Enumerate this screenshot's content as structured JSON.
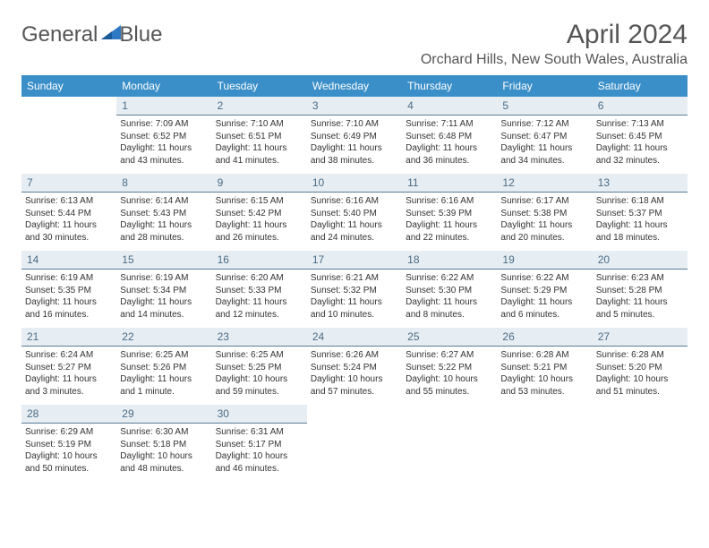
{
  "brand": {
    "word1": "General",
    "word2": "Blue"
  },
  "title": "April 2024",
  "location": "Orchard Hills, New South Wales, Australia",
  "colors": {
    "header_bg": "#3b8fc9",
    "header_text": "#ffffff",
    "daynum_bg": "#e7eef3",
    "daynum_text": "#4a6b85",
    "daynum_border": "#5a7a94",
    "body_text": "#333333",
    "logo_blue": "#2f78c2"
  },
  "fonts": {
    "title_size": 30,
    "location_size": 16,
    "dayheader_size": 12,
    "daynum_size": 12,
    "body_size": 10
  },
  "day_names": [
    "Sunday",
    "Monday",
    "Tuesday",
    "Wednesday",
    "Thursday",
    "Friday",
    "Saturday"
  ],
  "weeks": [
    [
      null,
      {
        "n": "1",
        "sr": "7:09 AM",
        "ss": "6:52 PM",
        "dl": "11 hours and 43 minutes."
      },
      {
        "n": "2",
        "sr": "7:10 AM",
        "ss": "6:51 PM",
        "dl": "11 hours and 41 minutes."
      },
      {
        "n": "3",
        "sr": "7:10 AM",
        "ss": "6:49 PM",
        "dl": "11 hours and 38 minutes."
      },
      {
        "n": "4",
        "sr": "7:11 AM",
        "ss": "6:48 PM",
        "dl": "11 hours and 36 minutes."
      },
      {
        "n": "5",
        "sr": "7:12 AM",
        "ss": "6:47 PM",
        "dl": "11 hours and 34 minutes."
      },
      {
        "n": "6",
        "sr": "7:13 AM",
        "ss": "6:45 PM",
        "dl": "11 hours and 32 minutes."
      }
    ],
    [
      {
        "n": "7",
        "sr": "6:13 AM",
        "ss": "5:44 PM",
        "dl": "11 hours and 30 minutes."
      },
      {
        "n": "8",
        "sr": "6:14 AM",
        "ss": "5:43 PM",
        "dl": "11 hours and 28 minutes."
      },
      {
        "n": "9",
        "sr": "6:15 AM",
        "ss": "5:42 PM",
        "dl": "11 hours and 26 minutes."
      },
      {
        "n": "10",
        "sr": "6:16 AM",
        "ss": "5:40 PM",
        "dl": "11 hours and 24 minutes."
      },
      {
        "n": "11",
        "sr": "6:16 AM",
        "ss": "5:39 PM",
        "dl": "11 hours and 22 minutes."
      },
      {
        "n": "12",
        "sr": "6:17 AM",
        "ss": "5:38 PM",
        "dl": "11 hours and 20 minutes."
      },
      {
        "n": "13",
        "sr": "6:18 AM",
        "ss": "5:37 PM",
        "dl": "11 hours and 18 minutes."
      }
    ],
    [
      {
        "n": "14",
        "sr": "6:19 AM",
        "ss": "5:35 PM",
        "dl": "11 hours and 16 minutes."
      },
      {
        "n": "15",
        "sr": "6:19 AM",
        "ss": "5:34 PM",
        "dl": "11 hours and 14 minutes."
      },
      {
        "n": "16",
        "sr": "6:20 AM",
        "ss": "5:33 PM",
        "dl": "11 hours and 12 minutes."
      },
      {
        "n": "17",
        "sr": "6:21 AM",
        "ss": "5:32 PM",
        "dl": "11 hours and 10 minutes."
      },
      {
        "n": "18",
        "sr": "6:22 AM",
        "ss": "5:30 PM",
        "dl": "11 hours and 8 minutes."
      },
      {
        "n": "19",
        "sr": "6:22 AM",
        "ss": "5:29 PM",
        "dl": "11 hours and 6 minutes."
      },
      {
        "n": "20",
        "sr": "6:23 AM",
        "ss": "5:28 PM",
        "dl": "11 hours and 5 minutes."
      }
    ],
    [
      {
        "n": "21",
        "sr": "6:24 AM",
        "ss": "5:27 PM",
        "dl": "11 hours and 3 minutes."
      },
      {
        "n": "22",
        "sr": "6:25 AM",
        "ss": "5:26 PM",
        "dl": "11 hours and 1 minute."
      },
      {
        "n": "23",
        "sr": "6:25 AM",
        "ss": "5:25 PM",
        "dl": "10 hours and 59 minutes."
      },
      {
        "n": "24",
        "sr": "6:26 AM",
        "ss": "5:24 PM",
        "dl": "10 hours and 57 minutes."
      },
      {
        "n": "25",
        "sr": "6:27 AM",
        "ss": "5:22 PM",
        "dl": "10 hours and 55 minutes."
      },
      {
        "n": "26",
        "sr": "6:28 AM",
        "ss": "5:21 PM",
        "dl": "10 hours and 53 minutes."
      },
      {
        "n": "27",
        "sr": "6:28 AM",
        "ss": "5:20 PM",
        "dl": "10 hours and 51 minutes."
      }
    ],
    [
      {
        "n": "28",
        "sr": "6:29 AM",
        "ss": "5:19 PM",
        "dl": "10 hours and 50 minutes."
      },
      {
        "n": "29",
        "sr": "6:30 AM",
        "ss": "5:18 PM",
        "dl": "10 hours and 48 minutes."
      },
      {
        "n": "30",
        "sr": "6:31 AM",
        "ss": "5:17 PM",
        "dl": "10 hours and 46 minutes."
      },
      null,
      null,
      null,
      null
    ]
  ],
  "labels": {
    "sunrise": "Sunrise:",
    "sunset": "Sunset:",
    "daylight": "Daylight:"
  }
}
